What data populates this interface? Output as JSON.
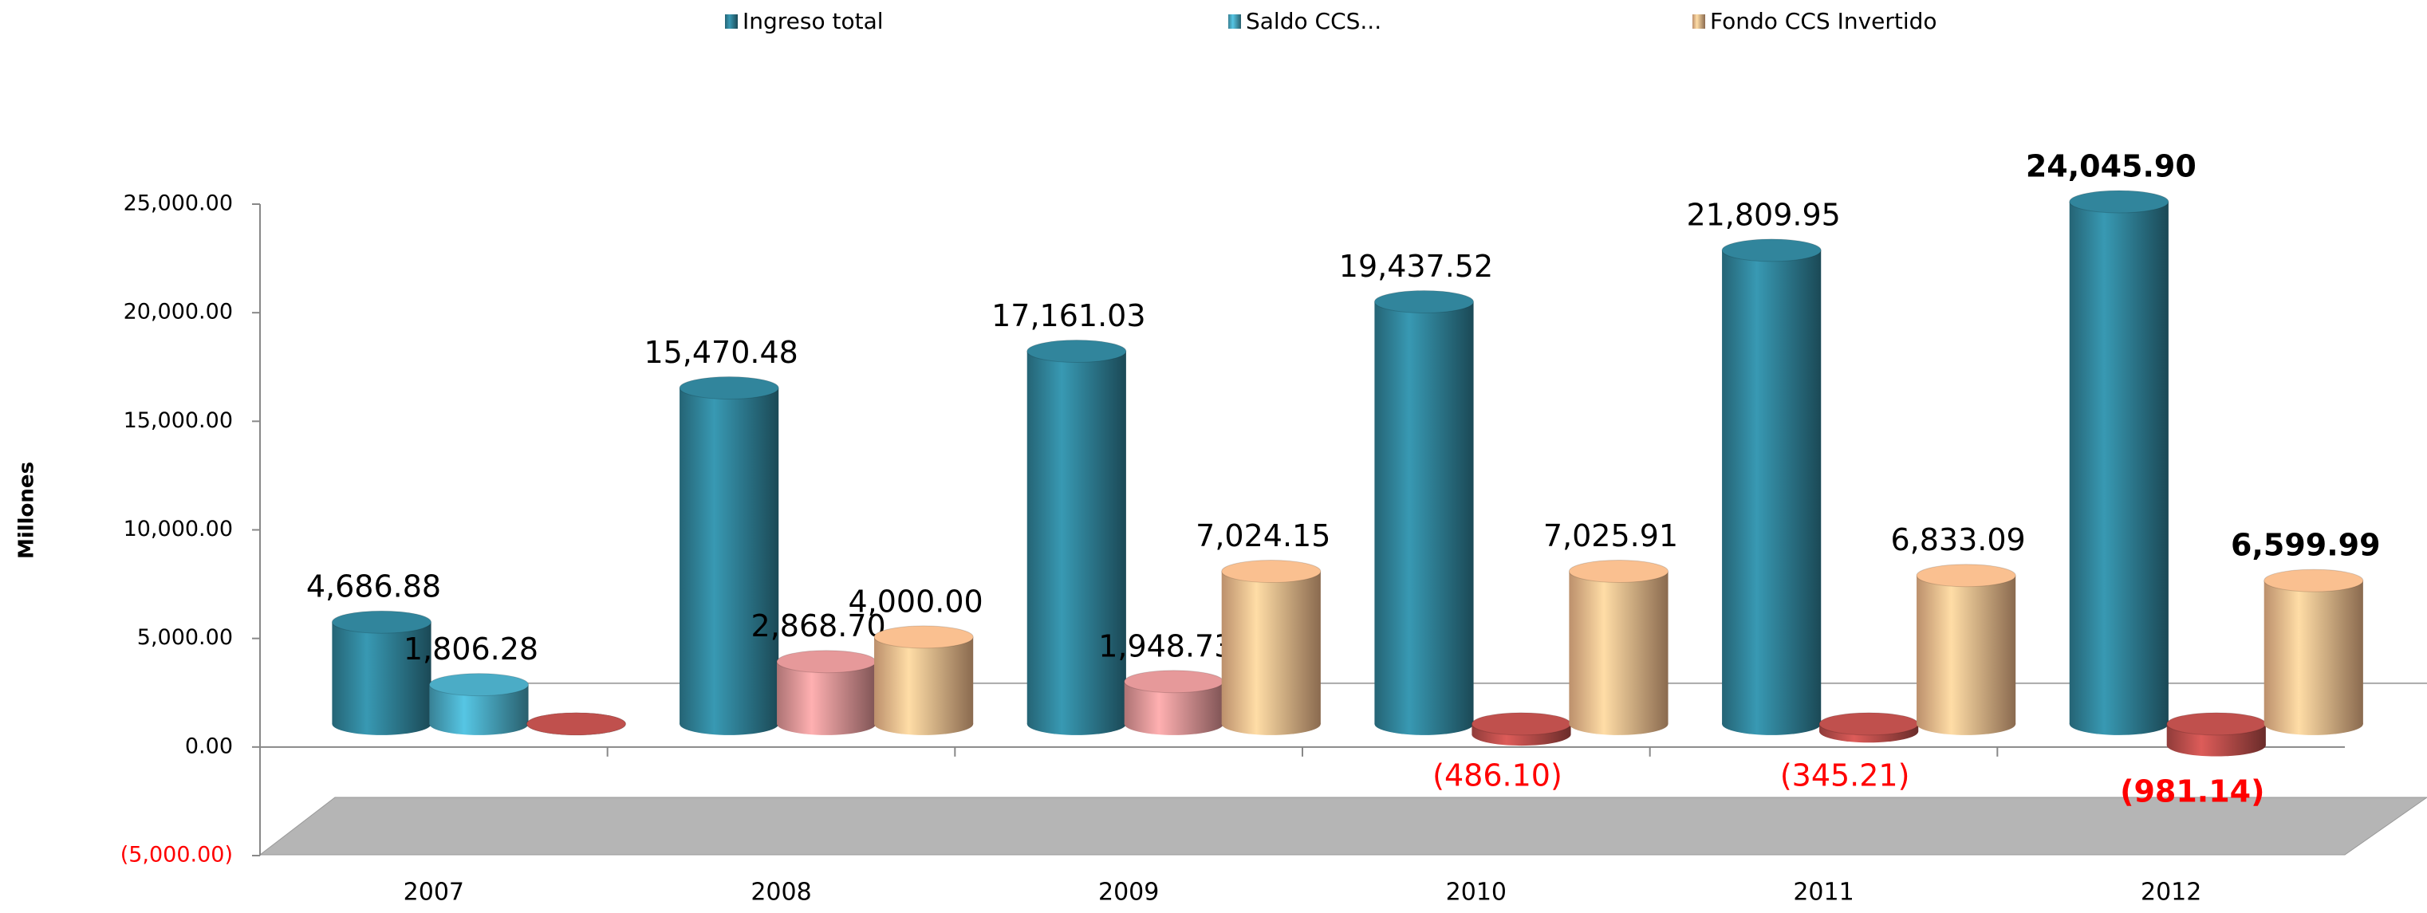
{
  "chart_data": {
    "type": "bar",
    "y_axis_label": "Millones",
    "categories": [
      "2007",
      "2008",
      "2009",
      "2010",
      "2011",
      "2012"
    ],
    "series": [
      {
        "name": "Ingreso total",
        "color": "#31859c",
        "values": [
          4686.88,
          15470.48,
          17161.03,
          19437.52,
          21809.95,
          24045.9
        ],
        "value_labels": [
          "4,686.88",
          "15,470.48",
          "17,161.03",
          "19,437.52",
          "21,809.95",
          "24,045.90"
        ]
      },
      {
        "name": "Saldo CCS...",
        "color": "#4bacc6",
        "colors": [
          "#4bacc6",
          "#e6999a",
          "#e6999a",
          "#c0504d",
          "#c0504d",
          "#c0504d"
        ],
        "values": [
          1806.28,
          2868.7,
          1948.73,
          -486.1,
          -345.21,
          -981.14
        ],
        "value_labels": [
          "1,806.28",
          "2,868.70",
          "1,948.73",
          "(486.10)",
          "(345.21)",
          "(981.14)"
        ]
      },
      {
        "name": "Fondo  CCS Invertido",
        "color": "#fac090",
        "colors": [
          "#c0504d",
          "#fac090",
          "#fac090",
          "#fac090",
          "#fac090",
          "#fac090"
        ],
        "values": [
          0,
          4000.0,
          7024.15,
          7025.91,
          6833.09,
          6599.99
        ],
        "value_labels": [
          null,
          "4,000.00",
          "7,024.15",
          "7,025.91",
          "6,833.09",
          "6,599.99"
        ]
      }
    ],
    "ylim": [
      -5000,
      25000
    ],
    "yticks": [
      {
        "value": -5000,
        "label": "(5,000.00)"
      },
      {
        "value": 0,
        "label": "0.00"
      },
      {
        "value": 5000,
        "label": "5,000.00"
      },
      {
        "value": 10000,
        "label": "10,000.00"
      },
      {
        "value": 15000,
        "label": "15,000.00"
      },
      {
        "value": 20000,
        "label": "20,000.00"
      },
      {
        "value": 25000,
        "label": "25,000.00"
      }
    ],
    "legend": "top"
  }
}
